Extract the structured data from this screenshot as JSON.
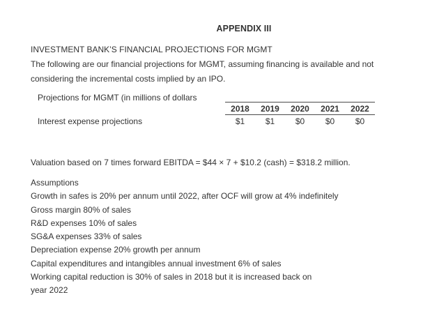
{
  "document": {
    "title": "APPENDIX III",
    "heading": "INVESTMENT BANK’S FINANCIAL PROJECTIONS FOR MGMT",
    "intro": {
      "line1": "The following are our financial projections for MGMT, assuming financing is available and not",
      "line2": "considering the incremental costs implied by an IPO."
    },
    "projections_table": {
      "caption": "Projections for MGMT (in millions of dollars",
      "years": [
        "2018",
        "2019",
        "2020",
        "2021",
        "2022"
      ],
      "rows": [
        {
          "label": "Interest expense projections",
          "values": [
            "$1",
            "$1",
            "$0",
            "$0",
            "$0"
          ]
        }
      ]
    },
    "valuation_note": "Valuation based on 7 times forward EBITDA = $44 × 7 + $10.2 (cash) = $318.2 million.",
    "assumptions": {
      "heading": "Assumptions",
      "lines": [
        "Growth in safes is 20% per annum until 2022, after OCF will grow at 4% indefinitely",
        "Gross margin 80% of sales",
        "R&D expenses 10% of sales",
        "SG&A expenses 33% of sales",
        "Depreciation expense 20% growth per annum",
        "Capital expenditures and intangibles annual investment 6% of sales",
        "Working capital reduction is 30% of sales in 2018 but it is increased back on",
        "year 2022"
      ]
    }
  },
  "colors": {
    "text": "#333333",
    "table_rule": "#4a4a4a",
    "background": "#ffffff"
  }
}
